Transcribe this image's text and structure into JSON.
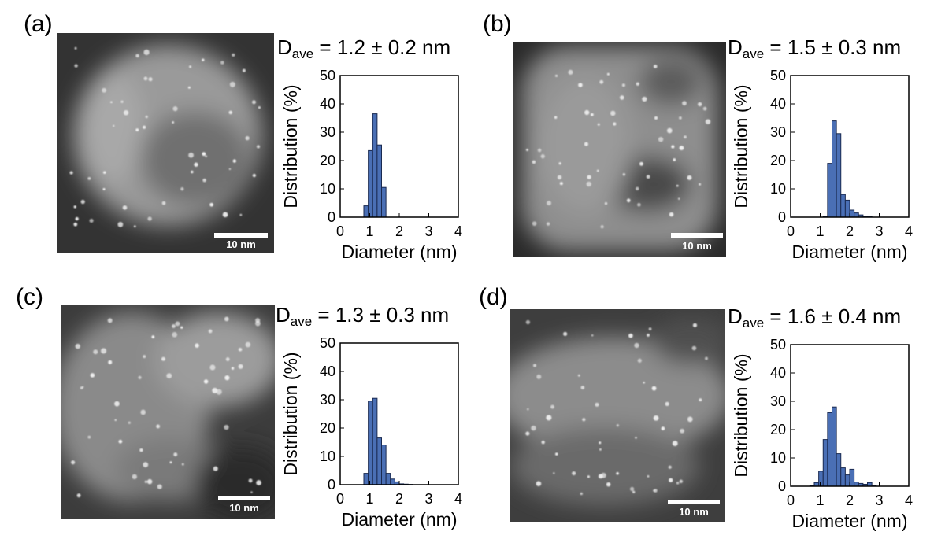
{
  "scale_bar_label": "10 nm",
  "colors": {
    "bar_fill": "#4a6fb5",
    "bar_stroke": "#1a2a50"
  },
  "panels": [
    {
      "label": "(a)",
      "dave_symbol": "D",
      "dave_sub": "ave",
      "dave_value": " = 1.2 ± 0.2 nm",
      "chart_data": {
        "type": "bar",
        "xlabel": "Diameter (nm)",
        "ylabel": "Distribution (%)",
        "xlim": [
          0,
          4
        ],
        "ylim": [
          0,
          50
        ],
        "xticks": [
          0,
          1,
          2,
          3,
          4
        ],
        "yticks": [
          0,
          10,
          20,
          30,
          40,
          50
        ],
        "bin_width": 0.15,
        "x": [
          0.8,
          0.95,
          1.1,
          1.25,
          1.4,
          1.55
        ],
        "values": [
          4,
          23.5,
          36.5,
          25.5,
          10.5,
          0
        ]
      }
    },
    {
      "label": "(b)",
      "dave_symbol": "D",
      "dave_sub": "ave",
      "dave_value": " = 1.5 ± 0.3 nm",
      "chart_data": {
        "type": "bar",
        "xlabel": "Diameter (nm)",
        "ylabel": "Distribution (%)",
        "xlim": [
          0,
          4
        ],
        "ylim": [
          0,
          50
        ],
        "xticks": [
          0,
          1,
          2,
          3,
          4
        ],
        "yticks": [
          0,
          10,
          20,
          30,
          40,
          50
        ],
        "bin_width": 0.15,
        "x": [
          1.1,
          1.25,
          1.4,
          1.55,
          1.7,
          1.85,
          2.0,
          2.15,
          2.3,
          2.45,
          2.6
        ],
        "values": [
          0.3,
          19,
          34,
          29.5,
          8,
          6,
          2.5,
          1.5,
          0.8,
          0.3,
          0.3
        ]
      }
    },
    {
      "label": "(c)",
      "dave_symbol": "D",
      "dave_sub": "ave",
      "dave_value": " = 1.3 ± 0.3 nm",
      "chart_data": {
        "type": "bar",
        "xlabel": "Diameter (nm)",
        "ylabel": "Distribution (%)",
        "xlim": [
          0,
          4
        ],
        "ylim": [
          0,
          50
        ],
        "xticks": [
          0,
          1,
          2,
          3,
          4
        ],
        "yticks": [
          0,
          10,
          20,
          30,
          40,
          50
        ],
        "bin_width": 0.15,
        "x": [
          0.8,
          0.95,
          1.1,
          1.25,
          1.4,
          1.55,
          1.7,
          1.85,
          2.0,
          2.15,
          2.3
        ],
        "values": [
          4,
          29.5,
          30.5,
          16.5,
          14,
          4,
          2,
          1,
          0.3,
          0.2,
          0.1
        ]
      }
    },
    {
      "label": "(d)",
      "dave_symbol": "D",
      "dave_sub": "ave",
      "dave_value": " = 1.6 ± 0.4 nm",
      "chart_data": {
        "type": "bar",
        "xlabel": "Diameter (nm)",
        "ylabel": "Distribution (%)",
        "xlim": [
          0,
          4
        ],
        "ylim": [
          0,
          50
        ],
        "xticks": [
          0,
          1,
          2,
          3,
          4
        ],
        "yticks": [
          0,
          10,
          20,
          30,
          40,
          50
        ],
        "bin_width": 0.15,
        "x": [
          0.65,
          0.8,
          0.95,
          1.1,
          1.25,
          1.4,
          1.55,
          1.7,
          1.85,
          2.0,
          2.15,
          2.3,
          2.45,
          2.6,
          2.75
        ],
        "values": [
          0.3,
          1.3,
          5.3,
          16.5,
          26,
          28,
          11.5,
          6.5,
          4,
          6,
          1.5,
          1,
          0.7,
          1.3,
          0.3
        ]
      }
    }
  ]
}
